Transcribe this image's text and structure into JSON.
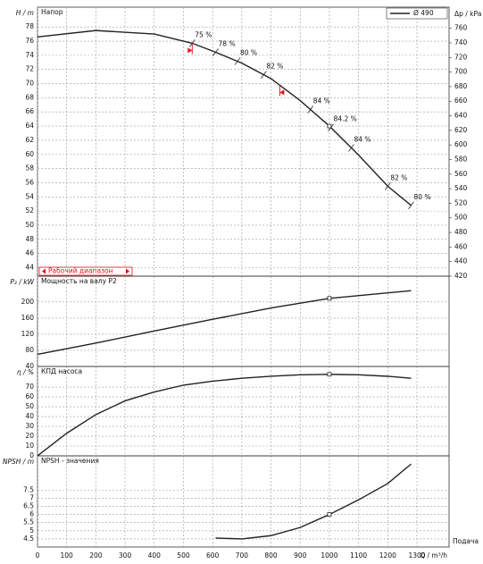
{
  "chart_data": [
    {
      "type": "line",
      "title": "Напор",
      "ylabel": "H / m",
      "y2label": "Δp / kPa",
      "xlim": [
        0,
        1410
      ],
      "xticks": [
        0,
        100,
        200,
        300,
        400,
        500,
        600,
        700,
        800,
        900,
        1000,
        1100,
        1200,
        1300
      ],
      "ylim": [
        42.8,
        80.8
      ],
      "yticks": [
        44,
        46,
        48,
        50,
        52,
        54,
        56,
        58,
        60,
        62,
        64,
        66,
        68,
        70,
        72,
        74,
        76,
        78
      ],
      "y2lim": [
        420,
        789
      ],
      "y2ticks": [
        420,
        440,
        460,
        480,
        500,
        520,
        540,
        560,
        580,
        600,
        620,
        640,
        660,
        680,
        700,
        720,
        740,
        760
      ],
      "grid": true,
      "legend": "top-right",
      "series": [
        {
          "name": "Ø 490",
          "color": "#222222",
          "x": [
            0,
            200,
            400,
            530,
            600,
            700,
            800,
            900,
            1000,
            1100,
            1200,
            1280
          ],
          "values": [
            76.6,
            77.5,
            77.0,
            75.7,
            74.6,
            72.9,
            70.7,
            67.6,
            64.0,
            59.9,
            55.5,
            52.8
          ]
        }
      ],
      "efficiency_marks": [
        {
          "x": 530,
          "label": "75 %"
        },
        {
          "x": 610,
          "label": "78 %"
        },
        {
          "x": 685,
          "label": "80 %"
        },
        {
          "x": 775,
          "label": "82 %"
        },
        {
          "x": 935,
          "label": "84 %"
        },
        {
          "x": 1005,
          "label": "84.2 %"
        },
        {
          "x": 1075,
          "label": "84 %"
        },
        {
          "x": 1200,
          "label": "82 %"
        },
        {
          "x": 1280,
          "label": "80 %"
        }
      ],
      "operating_point_x": 1000,
      "range_label": "Рабочий диапазон",
      "range": [
        530,
        830
      ],
      "range_color": "#e0101a"
    },
    {
      "type": "line",
      "title": "Мощность на валу P2",
      "ylabel": "P₂ / kW",
      "xlim": [
        0,
        1410
      ],
      "xticks": [
        0,
        100,
        200,
        300,
        400,
        500,
        600,
        700,
        800,
        900,
        1000,
        1100,
        1200,
        1300
      ],
      "ylim": [
        40,
        264
      ],
      "yticks": [
        40,
        80,
        120,
        160,
        200
      ],
      "grid": true,
      "series": [
        {
          "color": "#222222",
          "x": [
            0,
            200,
            400,
            600,
            800,
            1000,
            1280
          ],
          "values": [
            70,
            98,
            128,
            157,
            185,
            209,
            228
          ]
        }
      ],
      "operating_point_x": 1000
    },
    {
      "type": "line",
      "title": "КПД насоса",
      "ylabel": "η / %",
      "xlim": [
        0,
        1410
      ],
      "xticks": [
        0,
        100,
        200,
        300,
        400,
        500,
        600,
        700,
        800,
        900,
        1000,
        1100,
        1200,
        1300
      ],
      "ylim": [
        0,
        91
      ],
      "yticks": [
        0,
        10,
        20,
        30,
        40,
        50,
        60,
        70
      ],
      "grid": true,
      "series": [
        {
          "color": "#222222",
          "x": [
            0,
            100,
            200,
            300,
            400,
            500,
            600,
            700,
            800,
            900,
            1000,
            1100,
            1200,
            1280
          ],
          "values": [
            0,
            23,
            42,
            56,
            65,
            72,
            76,
            79,
            81,
            82.5,
            83,
            82.5,
            81,
            79
          ]
        }
      ],
      "operating_point_x": 1000
    },
    {
      "type": "line",
      "title": "NPSH - значения",
      "ylabel": "NPSH / m",
      "xlabel": "Q / m³/h",
      "xnote": "Подача",
      "xlim": [
        0,
        1410
      ],
      "xticks": [
        0,
        100,
        200,
        300,
        400,
        500,
        600,
        700,
        800,
        900,
        1000,
        1100,
        1200,
        1300
      ],
      "ylim": [
        4.0,
        9.6
      ],
      "yticks": [
        4.5,
        5,
        5.5,
        6,
        6.5,
        7,
        7.5
      ],
      "grid": true,
      "series": [
        {
          "color": "#222222",
          "x": [
            610,
            700,
            800,
            900,
            1000,
            1100,
            1200,
            1280
          ],
          "values": [
            4.55,
            4.5,
            4.7,
            5.2,
            6.0,
            6.9,
            7.9,
            9.1
          ]
        }
      ],
      "operating_point_x": 1000
    }
  ]
}
